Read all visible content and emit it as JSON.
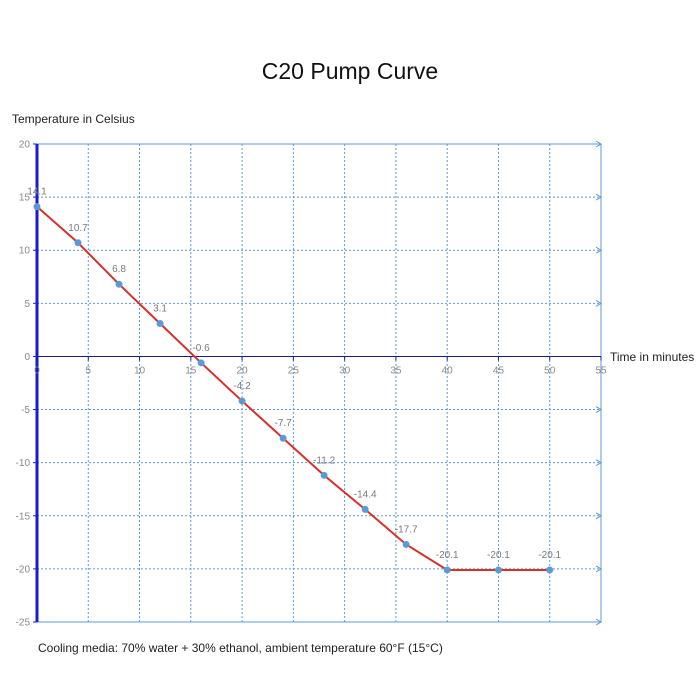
{
  "title": "C20 Pump Curve",
  "footnote": "Cooling media: 70% water + 30% ethanol, ambient temperature 60°F (15°C)",
  "colors": {
    "line": "#d9302c",
    "marker": "#5b9bd5",
    "grid": "#5b9bd5",
    "y_axis": "#1a1ad6",
    "x_axis": "#1a1a8a",
    "tick_label": "#8a8a8a"
  },
  "chart_data": {
    "type": "line",
    "title": "C20 Pump Curve",
    "xlabel": "Time in minutes",
    "ylabel": "Temperature in Celsius",
    "xlim": [
      0,
      55
    ],
    "ylim": [
      -25,
      20
    ],
    "x_ticks": [
      0,
      5,
      10,
      15,
      20,
      25,
      30,
      35,
      40,
      45,
      50,
      55
    ],
    "y_ticks": [
      20,
      15,
      10,
      5,
      0,
      -5,
      -10,
      -15,
      -20,
      -25
    ],
    "grid": true,
    "series": [
      {
        "x": [
          0,
          4,
          8,
          12,
          16,
          20,
          24,
          28,
          32,
          36,
          40,
          45,
          50
        ],
        "y": [
          14.1,
          10.7,
          6.8,
          3.1,
          -0.6,
          -4.2,
          -7.7,
          -11.2,
          -14.4,
          -17.7,
          -20.1,
          -20.1,
          -20.1
        ],
        "labels": [
          "14.1",
          "10.7",
          "6.8",
          "3.1",
          "-0.6",
          "-4.2",
          "-7.7",
          "-11.2",
          "-14.4",
          "-17.7",
          "-20.1",
          "-20.1",
          "-20.1"
        ]
      }
    ]
  }
}
